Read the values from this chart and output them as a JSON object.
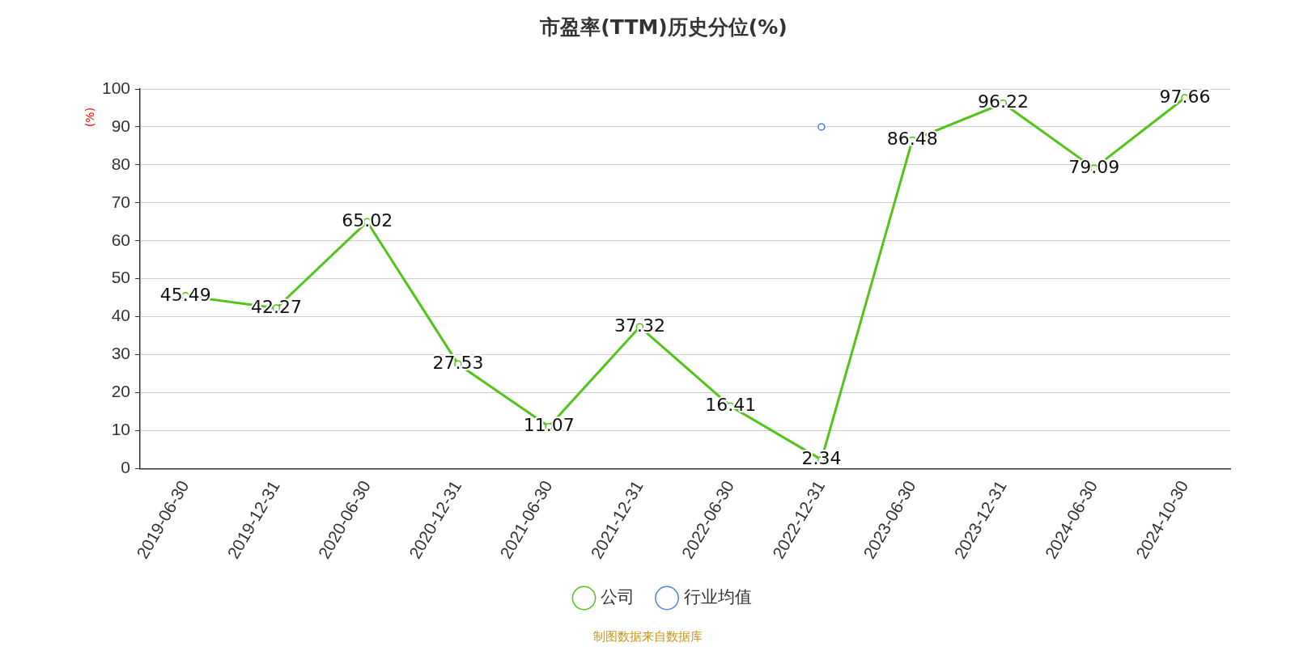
{
  "chart_data": {
    "type": "line",
    "title": "市盈率(TTM)历史分位(%)",
    "ylabel": "(%)",
    "categories": [
      "2019-06-30",
      "2019-12-31",
      "2020-06-30",
      "2020-12-31",
      "2021-06-30",
      "2021-12-31",
      "2022-06-30",
      "2022-12-31",
      "2023-06-30",
      "2023-12-31",
      "2024-06-30",
      "2024-10-30"
    ],
    "series": [
      {
        "name": "公司",
        "color": "#52c41a",
        "values": [
          45.49,
          42.27,
          65.02,
          27.53,
          11.07,
          37.32,
          16.41,
          2.34,
          86.48,
          96.22,
          79.09,
          97.66
        ],
        "value_labels": [
          "45.49",
          "42.27",
          "65.02",
          "27.53",
          "11.07",
          "37.32",
          "16.41",
          "2.34",
          "86.48",
          "96.22",
          "79.09",
          "97.66"
        ]
      },
      {
        "name": "行业均值",
        "color": "#4e7ee8",
        "values": [
          null,
          null,
          null,
          null,
          null,
          null,
          null,
          90,
          null,
          null,
          null,
          null
        ]
      }
    ],
    "ylim": [
      0,
      100
    ],
    "yticks": [
      0,
      10,
      20,
      30,
      40,
      50,
      60,
      70,
      80,
      90,
      100
    ],
    "grid": "y",
    "legend": "bottom",
    "marker": "circle",
    "line_style": "solid",
    "annotations": [
      "制图数据来自数据库"
    ]
  }
}
